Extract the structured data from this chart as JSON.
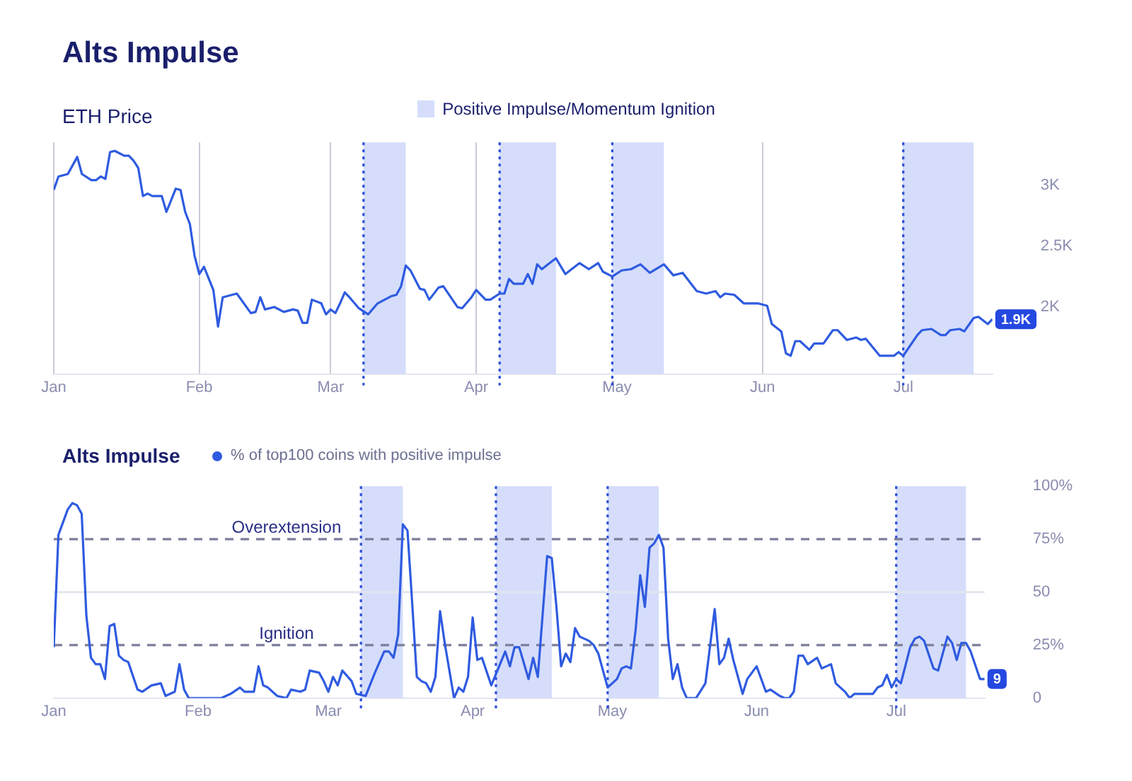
{
  "chart_data": [
    {
      "type": "line",
      "title": "Alts Impulse",
      "subtitle": "ETH Price",
      "xlim": [
        "--01-01",
        "--07-20"
      ],
      "xticks": [
        {
          "value": "--01-01",
          "label": "Jan"
        },
        {
          "value": "--02-01",
          "label": "Feb"
        },
        {
          "value": "--03-01",
          "label": "Mar"
        },
        {
          "value": "--04-01",
          "label": "Apr"
        },
        {
          "value": "--05-01",
          "label": "May"
        },
        {
          "value": "--06-01",
          "label": "Jun"
        },
        {
          "value": "--07-01",
          "label": "Jul"
        }
      ],
      "ylim": [
        1450,
        3350
      ],
      "yticks": [
        {
          "value": 2000,
          "label": "2K"
        },
        {
          "value": 2500,
          "label": "2.5K"
        },
        {
          "value": 3000,
          "label": "3K"
        }
      ],
      "grid": "x",
      "legend": "top",
      "series": [
        {
          "color": "#2f5be0",
          "x": [
            "--01-01",
            "--01-02",
            "--01-04",
            "--01-06",
            "--01-07",
            "--01-09",
            "--01-10",
            "--01-11",
            "--01-12",
            "--01-13",
            "--01-14",
            "--01-16",
            "--01-17",
            "--01-18",
            "--01-19",
            "--01-20",
            "--01-21",
            "--01-22",
            "--01-24",
            "--01-25",
            "--01-27",
            "--01-28",
            "--01-29",
            "--01-30",
            "--01-31",
            "--02-01",
            "--02-02",
            "--02-04",
            "--02-05",
            "--02-06",
            "--02-07",
            "--02-09",
            "--02-12",
            "--02-13",
            "--02-14",
            "--02-15",
            "--02-17",
            "--02-19",
            "--02-21",
            "--02-22",
            "--02-23",
            "--02-24",
            "--02-25",
            "--02-27",
            "--02-28",
            "--03-01",
            "--03-02",
            "--03-03",
            "--03-04",
            "--03-05",
            "--03-07",
            "--03-09",
            "--03-11",
            "--03-14",
            "--03-15",
            "--03-16",
            "--03-17",
            "--03-18",
            "--03-20",
            "--03-21",
            "--03-22",
            "--03-24",
            "--03-25",
            "--03-28",
            "--03-29",
            "--03-31",
            "--04-01",
            "--04-03",
            "--04-04",
            "--04-06",
            "--04-07",
            "--04-08",
            "--04-09",
            "--04-11",
            "--04-12",
            "--04-13",
            "--04-14",
            "--04-15",
            "--04-16",
            "--04-18",
            "--04-20",
            "--04-21",
            "--04-23",
            "--04-25",
            "--04-27",
            "--04-28",
            "--04-30",
            "--05-02",
            "--05-04",
            "--05-06",
            "--05-08",
            "--05-11",
            "--05-13",
            "--05-15",
            "--05-18",
            "--05-20",
            "--05-22",
            "--05-23",
            "--05-24",
            "--05-26",
            "--05-28",
            "--05-31",
            "--06-02",
            "--06-03",
            "--06-05",
            "--06-06",
            "--06-07",
            "--06-08",
            "--06-09",
            "--06-11",
            "--06-12",
            "--06-14",
            "--06-16",
            "--06-17",
            "--06-19",
            "--06-21",
            "--06-22",
            "--06-23",
            "--06-26",
            "--06-29",
            "--06-30",
            "--07-01",
            "--07-04",
            "--07-05",
            "--07-07",
            "--07-09",
            "--07-10",
            "--07-11",
            "--07-13",
            "--07-14",
            "--07-16",
            "--07-17",
            "--07-19",
            "--07-20"
          ],
          "values": [
            2960,
            3070,
            3090,
            3230,
            3090,
            3040,
            3040,
            3070,
            3050,
            3270,
            3280,
            3240,
            3240,
            3200,
            3140,
            2910,
            2930,
            2910,
            2910,
            2780,
            2970,
            2960,
            2780,
            2680,
            2420,
            2270,
            2330,
            2140,
            1840,
            2080,
            2090,
            2110,
            1950,
            1960,
            2080,
            1980,
            2000,
            1960,
            1980,
            1970,
            1870,
            1870,
            2060,
            2030,
            1940,
            1980,
            1950,
            2030,
            2120,
            2080,
            1990,
            1940,
            2030,
            2090,
            2100,
            2170,
            2340,
            2300,
            2150,
            2140,
            2060,
            2160,
            2170,
            2000,
            1990,
            2080,
            2140,
            2060,
            2060,
            2110,
            2110,
            2230,
            2190,
            2190,
            2270,
            2190,
            2350,
            2310,
            2340,
            2400,
            2270,
            2300,
            2360,
            2310,
            2360,
            2290,
            2250,
            2300,
            2310,
            2350,
            2280,
            2350,
            2260,
            2280,
            2130,
            2110,
            2130,
            2080,
            2110,
            2100,
            2030,
            2030,
            2010,
            1860,
            1800,
            1620,
            1600,
            1720,
            1720,
            1650,
            1700,
            1700,
            1810,
            1810,
            1730,
            1750,
            1730,
            1740,
            1600,
            1600,
            1630,
            1600,
            1770,
            1810,
            1820,
            1770,
            1770,
            1810,
            1820,
            1800,
            1910,
            1920,
            1860,
            1900
          ]
        }
      ],
      "bands": [
        {
          "axis": "x",
          "from": "--03-08",
          "to": "--03-17",
          "color": "#d5ddfb",
          "label": "Positive Impulse/Momentum Ignition"
        },
        {
          "axis": "x",
          "from": "--04-06",
          "to": "--04-18",
          "color": "#d5ddfb"
        },
        {
          "axis": "x",
          "from": "--04-30",
          "to": "--05-11",
          "color": "#d5ddfb"
        },
        {
          "axis": "x",
          "from": "--07-01",
          "to": "--07-16",
          "color": "#d5ddfb"
        }
      ],
      "ref_lines": [
        {
          "axis": "x",
          "value": "--03-08",
          "color": "#2b4fd8",
          "line_style": "dotted"
        },
        {
          "axis": "x",
          "value": "--04-06",
          "color": "#2b4fd8",
          "line_style": "dotted"
        },
        {
          "axis": "x",
          "value": "--04-30",
          "color": "#2b4fd8",
          "line_style": "dotted"
        },
        {
          "axis": "x",
          "value": "--07-01",
          "color": "#2b4fd8",
          "line_style": "dotted"
        }
      ],
      "annotations": [
        {
          "text": "1.9K",
          "x": "--07-20",
          "y": 1900
        }
      ]
    },
    {
      "type": "line",
      "title": "Alts Impulse",
      "xlim": [
        "--01-01",
        "--07-20"
      ],
      "xticks": [
        {
          "value": "--01-01",
          "label": "Jan"
        },
        {
          "value": "--02-01",
          "label": "Feb"
        },
        {
          "value": "--03-01",
          "label": "Mar"
        },
        {
          "value": "--04-01",
          "label": "Apr"
        },
        {
          "value": "--05-01",
          "label": "May"
        },
        {
          "value": "--06-01",
          "label": "Jun"
        },
        {
          "value": "--07-01",
          "label": "Jul"
        }
      ],
      "ylim": [
        0,
        100
      ],
      "yticks": [
        0,
        {
          "value": 25,
          "label": "25%"
        },
        50,
        {
          "value": 75,
          "label": "75%"
        },
        {
          "value": 100,
          "label": "100%"
        }
      ],
      "legend": "top left",
      "series": [
        {
          "name": "% of top100 coins with positive impulse",
          "color": "#2f5be0",
          "x": [
            "--01-01",
            "--01-02",
            "--01-04",
            "--01-05",
            "--01-06",
            "--01-07",
            "--01-08",
            "--01-09",
            "--01-10",
            "--01-11",
            "--01-12",
            "--01-13",
            "--01-14",
            "--01-15",
            "--01-16",
            "--01-17",
            "--01-19",
            "--01-20",
            "--01-22",
            "--01-24",
            "--01-25",
            "--01-27",
            "--01-28",
            "--01-29",
            "--01-30",
            "--02-06",
            "--02-08",
            "--02-10",
            "--02-11",
            "--02-13",
            "--02-14",
            "--02-15",
            "--02-16",
            "--02-18",
            "--02-20",
            "--02-21",
            "--02-23",
            "--02-24",
            "--02-25",
            "--02-27",
            "--02-28",
            "--03-01",
            "--03-02",
            "--03-03",
            "--03-04",
            "--03-06",
            "--03-07",
            "--03-09",
            "--03-11",
            "--03-13",
            "--03-14",
            "--03-15",
            "--03-16",
            "--03-17",
            "--03-18",
            "--03-19",
            "--03-20",
            "--03-21",
            "--03-22",
            "--03-23",
            "--03-24",
            "--03-25",
            "--03-26",
            "--03-28",
            "--03-29",
            "--03-30",
            "--03-31",
            "--04-01",
            "--04-02",
            "--04-03",
            "--04-05",
            "--04-08",
            "--04-09",
            "--04-10",
            "--04-11",
            "--04-13",
            "--04-14",
            "--04-15",
            "--04-17",
            "--04-18",
            "--04-19",
            "--04-20",
            "--04-21",
            "--04-22",
            "--04-23",
            "--04-24",
            "--04-26",
            "--04-27",
            "--04-28",
            "--04-29",
            "--04-30",
            "--05-02",
            "--05-03",
            "--05-04",
            "--05-05",
            "--05-06",
            "--05-07",
            "--05-08",
            "--05-09",
            "--05-10",
            "--05-11",
            "--05-12",
            "--05-13",
            "--05-14",
            "--05-15",
            "--05-16",
            "--05-17",
            "--05-19",
            "--05-21",
            "--05-23",
            "--05-24",
            "--05-25",
            "--05-26",
            "--05-27",
            "--05-29",
            "--05-30",
            "--06-01",
            "--06-03",
            "--06-04",
            "--06-06",
            "--06-07",
            "--06-08",
            "--06-09",
            "--06-10",
            "--06-11",
            "--06-12",
            "--06-14",
            "--06-15",
            "--06-17",
            "--06-18",
            "--06-20",
            "--06-21",
            "--06-22",
            "--06-26",
            "--06-27",
            "--06-28",
            "--06-29",
            "--06-30",
            "--07-01",
            "--07-02",
            "--07-04",
            "--07-05",
            "--07-06",
            "--07-07",
            "--07-09",
            "--07-10",
            "--07-12",
            "--07-13",
            "--07-14",
            "--07-15",
            "--07-16",
            "--07-17",
            "--07-19",
            "--07-20"
          ],
          "values": [
            24,
            77,
            89,
            92,
            91,
            87,
            39,
            19,
            16,
            16,
            9,
            34,
            35,
            20,
            18,
            17,
            4,
            3,
            6,
            7,
            1,
            3,
            16,
            4,
            0,
            0,
            2,
            5,
            3,
            3,
            15,
            6,
            5,
            1,
            0,
            4,
            3,
            4,
            13,
            12,
            8,
            3,
            10,
            6,
            13,
            8,
            2,
            1,
            12,
            22,
            22,
            19,
            30,
            82,
            79,
            45,
            10,
            8,
            7,
            3,
            10,
            41,
            26,
            0,
            5,
            3,
            10,
            38,
            18,
            19,
            6,
            22,
            15,
            24,
            24,
            9,
            19,
            10,
            67,
            66,
            43,
            15,
            21,
            17,
            33,
            29,
            27,
            25,
            21,
            13,
            5,
            9,
            14,
            15,
            14,
            32,
            58,
            43,
            71,
            73,
            77,
            71,
            28,
            9,
            16,
            5,
            0,
            0,
            7,
            42,
            16,
            19,
            28,
            18,
            2,
            9,
            15,
            3,
            4,
            1,
            0,
            0,
            3,
            20,
            20,
            16,
            19,
            14,
            16,
            7,
            3,
            0,
            2,
            2,
            5,
            6,
            11,
            5,
            9,
            7,
            24,
            28,
            29,
            27,
            14,
            13,
            29,
            26,
            18,
            26,
            26,
            22,
            9,
            9
          ]
        }
      ],
      "bands": [
        {
          "axis": "x",
          "from": "--03-08",
          "to": "--03-17",
          "color": "#d5ddfb"
        },
        {
          "axis": "x",
          "from": "--04-06",
          "to": "--04-18",
          "color": "#d5ddfb"
        },
        {
          "axis": "x",
          "from": "--04-30",
          "to": "--05-11",
          "color": "#d5ddfb"
        },
        {
          "axis": "x",
          "from": "--07-01",
          "to": "--07-16",
          "color": "#d5ddfb"
        }
      ],
      "ref_lines": [
        {
          "axis": "x",
          "value": "--03-08",
          "color": "#2b4fd8",
          "line_style": "dotted"
        },
        {
          "axis": "x",
          "value": "--04-06",
          "color": "#2b4fd8",
          "line_style": "dotted"
        },
        {
          "axis": "x",
          "value": "--04-30",
          "color": "#2b4fd8",
          "line_style": "dotted"
        },
        {
          "axis": "x",
          "value": "--07-01",
          "color": "#2b4fd8",
          "line_style": "dotted"
        },
        {
          "axis": "y",
          "value": 50,
          "color": "#e3e5ee",
          "line_style": "solid"
        },
        {
          "axis": "y",
          "value": 75,
          "label": "Overextension",
          "color": "#7b7e9a",
          "line_style": "dashed"
        },
        {
          "axis": "y",
          "value": 25,
          "label": "Ignition",
          "color": "#7b7e9a",
          "line_style": "dashed"
        }
      ],
      "annotations": [
        {
          "text": "9",
          "x": "--07-20",
          "y": 9
        }
      ]
    }
  ]
}
